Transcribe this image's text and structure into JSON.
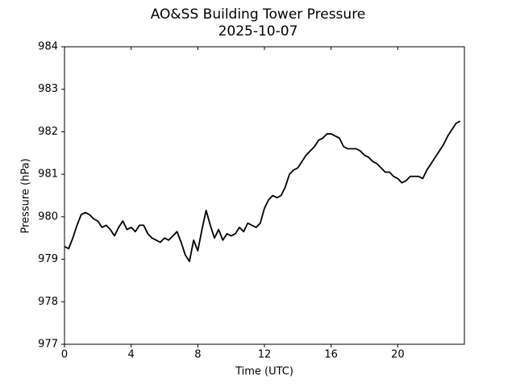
{
  "chart_data": {
    "type": "line",
    "title": "AO&SS Building Tower Pressure",
    "subtitle": "2025-10-07",
    "x_label": "Time (UTC)",
    "y_label": "Pressure (hPa)",
    "xlim": [
      0,
      24
    ],
    "xticks": [
      0,
      4,
      8,
      12,
      16,
      20
    ],
    "ylim": [
      977,
      984
    ],
    "yticks": [
      977,
      978,
      979,
      980,
      981,
      982,
      983,
      984
    ],
    "grid": false,
    "x": [
      0,
      0.25,
      0.5,
      0.75,
      1,
      1.25,
      1.5,
      1.75,
      2,
      2.25,
      2.5,
      2.75,
      3,
      3.25,
      3.5,
      3.75,
      4,
      4.25,
      4.5,
      4.75,
      5,
      5.25,
      5.5,
      5.75,
      6,
      6.25,
      6.5,
      6.75,
      7,
      7.25,
      7.5,
      7.75,
      8,
      8.25,
      8.5,
      8.75,
      9,
      9.25,
      9.5,
      9.75,
      10,
      10.25,
      10.5,
      10.75,
      11,
      11.25,
      11.5,
      11.75,
      12,
      12.25,
      12.5,
      12.75,
      13,
      13.25,
      13.5,
      13.75,
      14,
      14.25,
      14.5,
      14.75,
      15,
      15.25,
      15.5,
      15.75,
      16,
      16.25,
      16.5,
      16.75,
      17,
      17.25,
      17.5,
      17.75,
      18,
      18.25,
      18.5,
      18.75,
      19,
      19.25,
      19.5,
      19.75,
      20,
      20.25,
      20.5,
      20.75,
      21,
      21.25,
      21.5,
      21.75,
      22,
      22.25,
      22.5,
      22.75,
      23,
      23.25,
      23.5,
      23.75
    ],
    "series": [
      {
        "name": "Pressure",
        "color": "#000000",
        "values": [
          979.3,
          979.25,
          979.5,
          979.8,
          980.05,
          980.1,
          980.05,
          979.95,
          979.9,
          979.75,
          979.8,
          979.7,
          979.55,
          979.75,
          979.9,
          979.7,
          979.75,
          979.65,
          979.8,
          979.8,
          979.6,
          979.5,
          979.45,
          979.4,
          979.5,
          979.45,
          979.55,
          979.65,
          979.4,
          979.1,
          978.95,
          979.45,
          979.2,
          979.7,
          980.15,
          979.8,
          979.5,
          979.7,
          979.45,
          979.6,
          979.55,
          979.6,
          979.75,
          979.65,
          979.85,
          979.8,
          979.75,
          979.85,
          980.2,
          980.4,
          980.5,
          980.45,
          980.5,
          980.7,
          981.0,
          981.1,
          981.15,
          981.3,
          981.45,
          981.55,
          981.65,
          981.8,
          981.85,
          981.95,
          981.95,
          981.9,
          981.85,
          981.65,
          981.6,
          981.6,
          981.6,
          981.55,
          981.45,
          981.4,
          981.3,
          981.25,
          981.15,
          981.05,
          981.05,
          980.95,
          980.9,
          980.8,
          980.85,
          980.95,
          980.95,
          980.95,
          980.9,
          981.1,
          981.25,
          981.4,
          981.55,
          981.7,
          981.9,
          982.05,
          982.2,
          982.25
        ]
      }
    ]
  }
}
